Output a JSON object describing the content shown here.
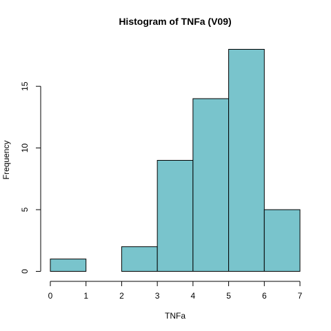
{
  "chart_data": {
    "type": "bar",
    "title": "Histogram of TNFa (V09)",
    "xlabel": "TNFa",
    "ylabel": "Frequency",
    "bins": [
      {
        "from": 0,
        "to": 1,
        "count": 1
      },
      {
        "from": 1,
        "to": 2,
        "count": 0
      },
      {
        "from": 2,
        "to": 3,
        "count": 2
      },
      {
        "from": 3,
        "to": 4,
        "count": 9
      },
      {
        "from": 4,
        "to": 5,
        "count": 14
      },
      {
        "from": 5,
        "to": 6,
        "count": 18
      },
      {
        "from": 6,
        "to": 7,
        "count": 5
      }
    ],
    "xlim": [
      0,
      7
    ],
    "ylim": [
      0,
      18
    ],
    "x_ticks": [
      0,
      1,
      2,
      3,
      4,
      5,
      6,
      7
    ],
    "y_ticks": [
      0,
      5,
      10,
      15
    ],
    "bar_color": "#79c4cc",
    "grid": false
  }
}
